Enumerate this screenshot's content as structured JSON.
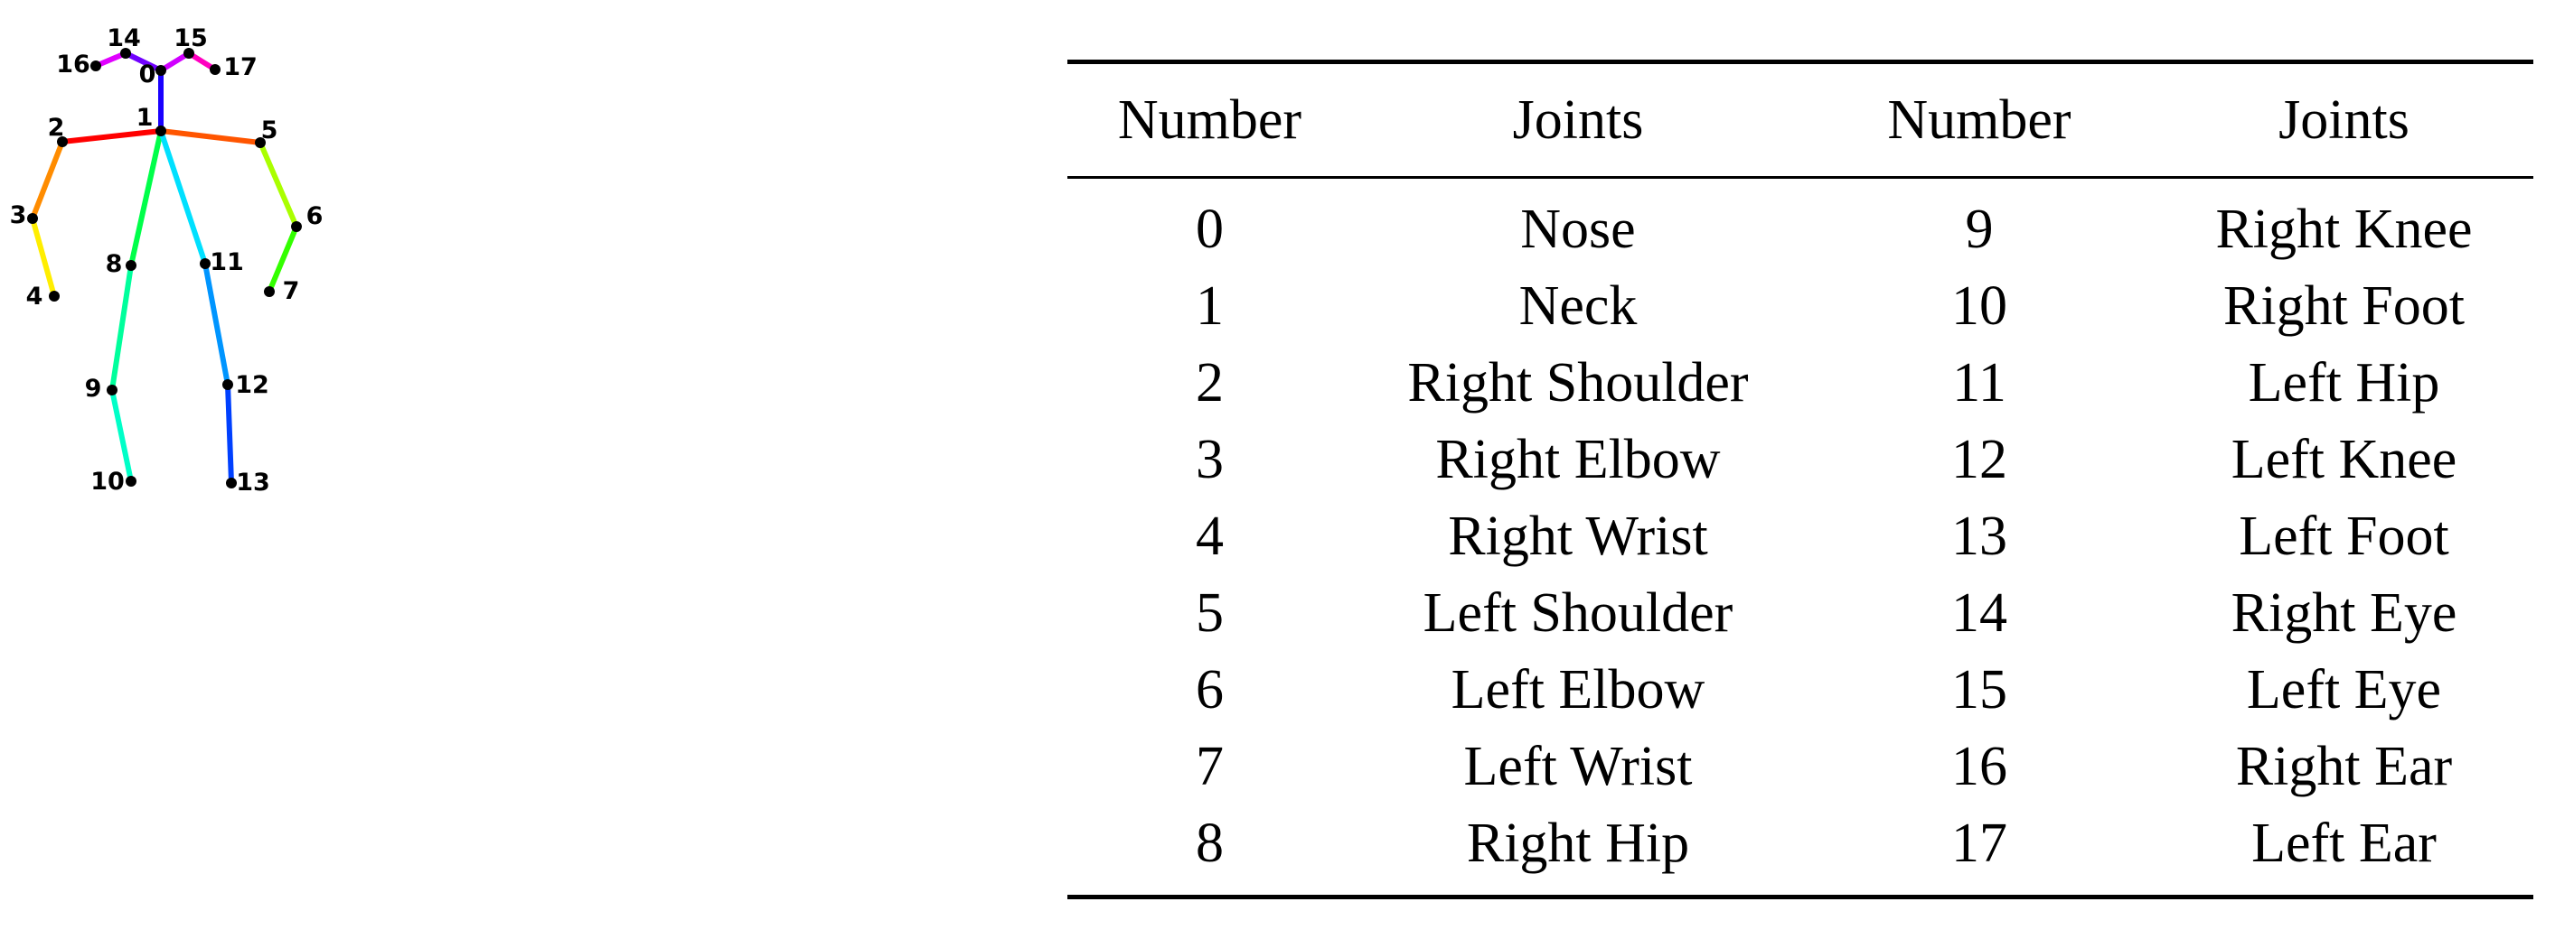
{
  "table": {
    "headers": [
      "Number",
      "Joints",
      "Number",
      "Joints"
    ],
    "rows": [
      [
        "0",
        "Nose",
        "9",
        "Right Knee"
      ],
      [
        "1",
        "Neck",
        "10",
        "Right Foot"
      ],
      [
        "2",
        "Right Shoulder",
        "11",
        "Left Hip"
      ],
      [
        "3",
        "Right Elbow",
        "12",
        "Left Knee"
      ],
      [
        "4",
        "Right Wrist",
        "13",
        "Left Foot"
      ],
      [
        "5",
        "Left Shoulder",
        "14",
        "Right Eye"
      ],
      [
        "6",
        "Left Elbow",
        "15",
        "Left Eye"
      ],
      [
        "7",
        "Left Wrist",
        "16",
        "Right Ear"
      ],
      [
        "8",
        "Right Hip",
        "17",
        "Left Ear"
      ]
    ]
  },
  "skeleton": {
    "joint_labels": [
      "0",
      "1",
      "2",
      "3",
      "4",
      "5",
      "6",
      "7",
      "8",
      "9",
      "10",
      "11",
      "12",
      "13",
      "14",
      "15",
      "16",
      "17"
    ],
    "limb_colors": {
      "neck_nose": "#1a00ff",
      "nose_right_eye": "#7000ff",
      "right_eye_right_ear": "#e000ff",
      "nose_left_eye": "#d000ff",
      "left_eye_left_ear": "#ff00c0",
      "neck_right_shoulder": "#ff0000",
      "right_upper_arm": "#ff8c00",
      "right_forearm": "#ffee00",
      "neck_left_shoulder": "#ff5500",
      "left_upper_arm": "#aaff00",
      "left_forearm": "#33ff00",
      "right_torso": "#00ff4a",
      "right_thigh": "#00ff9c",
      "right_shin": "#00ffc8",
      "left_torso": "#00e0ff",
      "left_thigh": "#0095ff",
      "left_shin": "#0040ff"
    },
    "joint_color": "#000000"
  }
}
